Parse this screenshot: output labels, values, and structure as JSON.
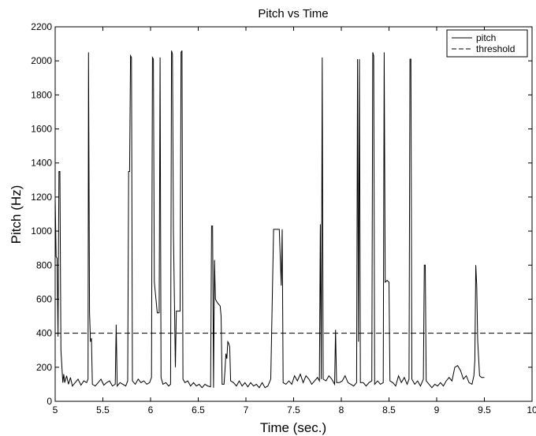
{
  "chart_data": {
    "type": "line",
    "title": "Pitch vs Time",
    "xlabel": "Time (sec.)",
    "ylabel": "Pitch (Hz)",
    "xlim": [
      5,
      10
    ],
    "ylim": [
      0,
      2200
    ],
    "xticks": [
      5,
      5.5,
      6,
      6.5,
      7,
      7.5,
      8,
      8.5,
      9,
      9.5,
      10
    ],
    "xtick_labels": [
      "5",
      "5.5",
      "6",
      "6.5",
      "7",
      "7.5",
      "8",
      "8.5",
      "9",
      "9.5",
      "10"
    ],
    "yticks": [
      0,
      200,
      400,
      600,
      800,
      1000,
      1200,
      1400,
      1600,
      1800,
      2000,
      2200
    ],
    "ytick_labels": [
      "0",
      "200",
      "400",
      "600",
      "800",
      "1000",
      "1200",
      "1400",
      "1600",
      "1800",
      "2000",
      "2200"
    ],
    "grid": false,
    "legend": {
      "position": "top-right",
      "entries": [
        "pitch",
        "threshold"
      ]
    },
    "series": [
      {
        "name": "pitch",
        "style": "solid",
        "color": "#000000",
        "points": [
          [
            5.0,
            1200
          ],
          [
            5.01,
            850
          ],
          [
            5.02,
            840
          ],
          [
            5.03,
            380
          ],
          [
            5.04,
            1350
          ],
          [
            5.05,
            1350
          ],
          [
            5.06,
            300
          ],
          [
            5.08,
            110
          ],
          [
            5.09,
            160
          ],
          [
            5.1,
            110
          ],
          [
            5.12,
            150
          ],
          [
            5.14,
            100
          ],
          [
            5.16,
            140
          ],
          [
            5.18,
            90
          ],
          [
            5.21,
            110
          ],
          [
            5.24,
            130
          ],
          [
            5.27,
            95
          ],
          [
            5.3,
            120
          ],
          [
            5.33,
            110
          ],
          [
            5.345,
            130
          ],
          [
            5.35,
            2050
          ],
          [
            5.36,
            520
          ],
          [
            5.37,
            350
          ],
          [
            5.38,
            370
          ],
          [
            5.39,
            100
          ],
          [
            5.42,
            90
          ],
          [
            5.45,
            110
          ],
          [
            5.48,
            130
          ],
          [
            5.51,
            95
          ],
          [
            5.54,
            110
          ],
          [
            5.57,
            120
          ],
          [
            5.6,
            90
          ],
          [
            5.63,
            100
          ],
          [
            5.64,
            450
          ],
          [
            5.65,
            90
          ],
          [
            5.68,
            110
          ],
          [
            5.71,
            100
          ],
          [
            5.74,
            90
          ],
          [
            5.76,
            120
          ],
          [
            5.77,
            1350
          ],
          [
            5.78,
            1350
          ],
          [
            5.79,
            2030
          ],
          [
            5.8,
            2020
          ],
          [
            5.81,
            120
          ],
          [
            5.84,
            100
          ],
          [
            5.87,
            130
          ],
          [
            5.9,
            110
          ],
          [
            5.93,
            120
          ],
          [
            5.96,
            100
          ],
          [
            5.99,
            110
          ],
          [
            6.01,
            140
          ],
          [
            6.02,
            2020
          ],
          [
            6.03,
            2010
          ],
          [
            6.04,
            700
          ],
          [
            6.07,
            520
          ],
          [
            6.09,
            520
          ],
          [
            6.1,
            2020
          ],
          [
            6.11,
            140
          ],
          [
            6.13,
            100
          ],
          [
            6.16,
            110
          ],
          [
            6.19,
            90
          ],
          [
            6.21,
            100
          ],
          [
            6.22,
            2060
          ],
          [
            6.23,
            2040
          ],
          [
            6.24,
            1000
          ],
          [
            6.26,
            200
          ],
          [
            6.27,
            530
          ],
          [
            6.29,
            530
          ],
          [
            6.31,
            530
          ],
          [
            6.32,
            2050
          ],
          [
            6.33,
            2060
          ],
          [
            6.34,
            130
          ],
          [
            6.36,
            110
          ],
          [
            6.39,
            120
          ],
          [
            6.42,
            90
          ],
          [
            6.45,
            110
          ],
          [
            6.48,
            90
          ],
          [
            6.51,
            100
          ],
          [
            6.54,
            80
          ],
          [
            6.57,
            100
          ],
          [
            6.6,
            90
          ],
          [
            6.63,
            85
          ],
          [
            6.64,
            1030
          ],
          [
            6.65,
            1030
          ],
          [
            6.66,
            80
          ],
          [
            6.67,
            830
          ],
          [
            6.68,
            600
          ],
          [
            6.7,
            580
          ],
          [
            6.73,
            560
          ],
          [
            6.74,
            500
          ],
          [
            6.75,
            100
          ],
          [
            6.77,
            100
          ],
          [
            6.78,
            180
          ],
          [
            6.79,
            280
          ],
          [
            6.8,
            250
          ],
          [
            6.81,
            350
          ],
          [
            6.82,
            340
          ],
          [
            6.83,
            320
          ],
          [
            6.84,
            120
          ],
          [
            6.87,
            110
          ],
          [
            6.9,
            90
          ],
          [
            6.93,
            120
          ],
          [
            6.96,
            90
          ],
          [
            6.99,
            110
          ],
          [
            7.02,
            85
          ],
          [
            7.05,
            110
          ],
          [
            7.08,
            90
          ],
          [
            7.11,
            100
          ],
          [
            7.14,
            80
          ],
          [
            7.17,
            110
          ],
          [
            7.2,
            80
          ],
          [
            7.23,
            90
          ],
          [
            7.26,
            130
          ],
          [
            7.29,
            1010
          ],
          [
            7.35,
            1010
          ],
          [
            7.37,
            680
          ],
          [
            7.38,
            1010
          ],
          [
            7.39,
            110
          ],
          [
            7.42,
            100
          ],
          [
            7.45,
            120
          ],
          [
            7.48,
            100
          ],
          [
            7.51,
            150
          ],
          [
            7.54,
            120
          ],
          [
            7.57,
            160
          ],
          [
            7.6,
            110
          ],
          [
            7.63,
            150
          ],
          [
            7.66,
            130
          ],
          [
            7.69,
            100
          ],
          [
            7.72,
            120
          ],
          [
            7.75,
            140
          ],
          [
            7.77,
            120
          ],
          [
            7.78,
            1040
          ],
          [
            7.79,
            130
          ],
          [
            7.8,
            2020
          ],
          [
            7.81,
            130
          ],
          [
            7.84,
            120
          ],
          [
            7.87,
            150
          ],
          [
            7.9,
            130
          ],
          [
            7.93,
            100
          ],
          [
            7.94,
            420
          ],
          [
            7.95,
            110
          ],
          [
            7.98,
            110
          ],
          [
            8.01,
            120
          ],
          [
            8.04,
            150
          ],
          [
            8.07,
            110
          ],
          [
            8.1,
            100
          ],
          [
            8.13,
            90
          ],
          [
            8.16,
            110
          ],
          [
            8.17,
            2010
          ],
          [
            8.18,
            350
          ],
          [
            8.19,
            2010
          ],
          [
            8.2,
            110
          ],
          [
            8.23,
            110
          ],
          [
            8.26,
            90
          ],
          [
            8.29,
            110
          ],
          [
            8.32,
            120
          ],
          [
            8.33,
            2050
          ],
          [
            8.34,
            2030
          ],
          [
            8.35,
            100
          ],
          [
            8.38,
            120
          ],
          [
            8.41,
            100
          ],
          [
            8.44,
            110
          ],
          [
            8.45,
            2050
          ],
          [
            8.46,
            700
          ],
          [
            8.48,
            710
          ],
          [
            8.5,
            700
          ],
          [
            8.51,
            120
          ],
          [
            8.54,
            110
          ],
          [
            8.57,
            90
          ],
          [
            8.6,
            150
          ],
          [
            8.63,
            110
          ],
          [
            8.66,
            140
          ],
          [
            8.69,
            100
          ],
          [
            8.71,
            130
          ],
          [
            8.72,
            2010
          ],
          [
            8.73,
            2010
          ],
          [
            8.74,
            130
          ],
          [
            8.77,
            100
          ],
          [
            8.8,
            120
          ],
          [
            8.83,
            90
          ],
          [
            8.86,
            130
          ],
          [
            8.87,
            800
          ],
          [
            8.88,
            800
          ],
          [
            8.89,
            120
          ],
          [
            8.92,
            100
          ],
          [
            8.95,
            80
          ],
          [
            8.98,
            100
          ],
          [
            9.01,
            90
          ],
          [
            9.04,
            110
          ],
          [
            9.07,
            90
          ],
          [
            9.1,
            120
          ],
          [
            9.13,
            140
          ],
          [
            9.16,
            120
          ],
          [
            9.19,
            200
          ],
          [
            9.22,
            210
          ],
          [
            9.25,
            180
          ],
          [
            9.28,
            130
          ],
          [
            9.31,
            150
          ],
          [
            9.34,
            110
          ],
          [
            9.37,
            100
          ],
          [
            9.39,
            150
          ],
          [
            9.4,
            240
          ],
          [
            9.41,
            800
          ],
          [
            9.42,
            680
          ],
          [
            9.43,
            360
          ],
          [
            9.45,
            150
          ],
          [
            9.47,
            140
          ],
          [
            9.5,
            140
          ]
        ]
      },
      {
        "name": "threshold",
        "style": "dashed",
        "color": "#000000",
        "points": [
          [
            5,
            400
          ],
          [
            10,
            400
          ]
        ]
      }
    ]
  }
}
